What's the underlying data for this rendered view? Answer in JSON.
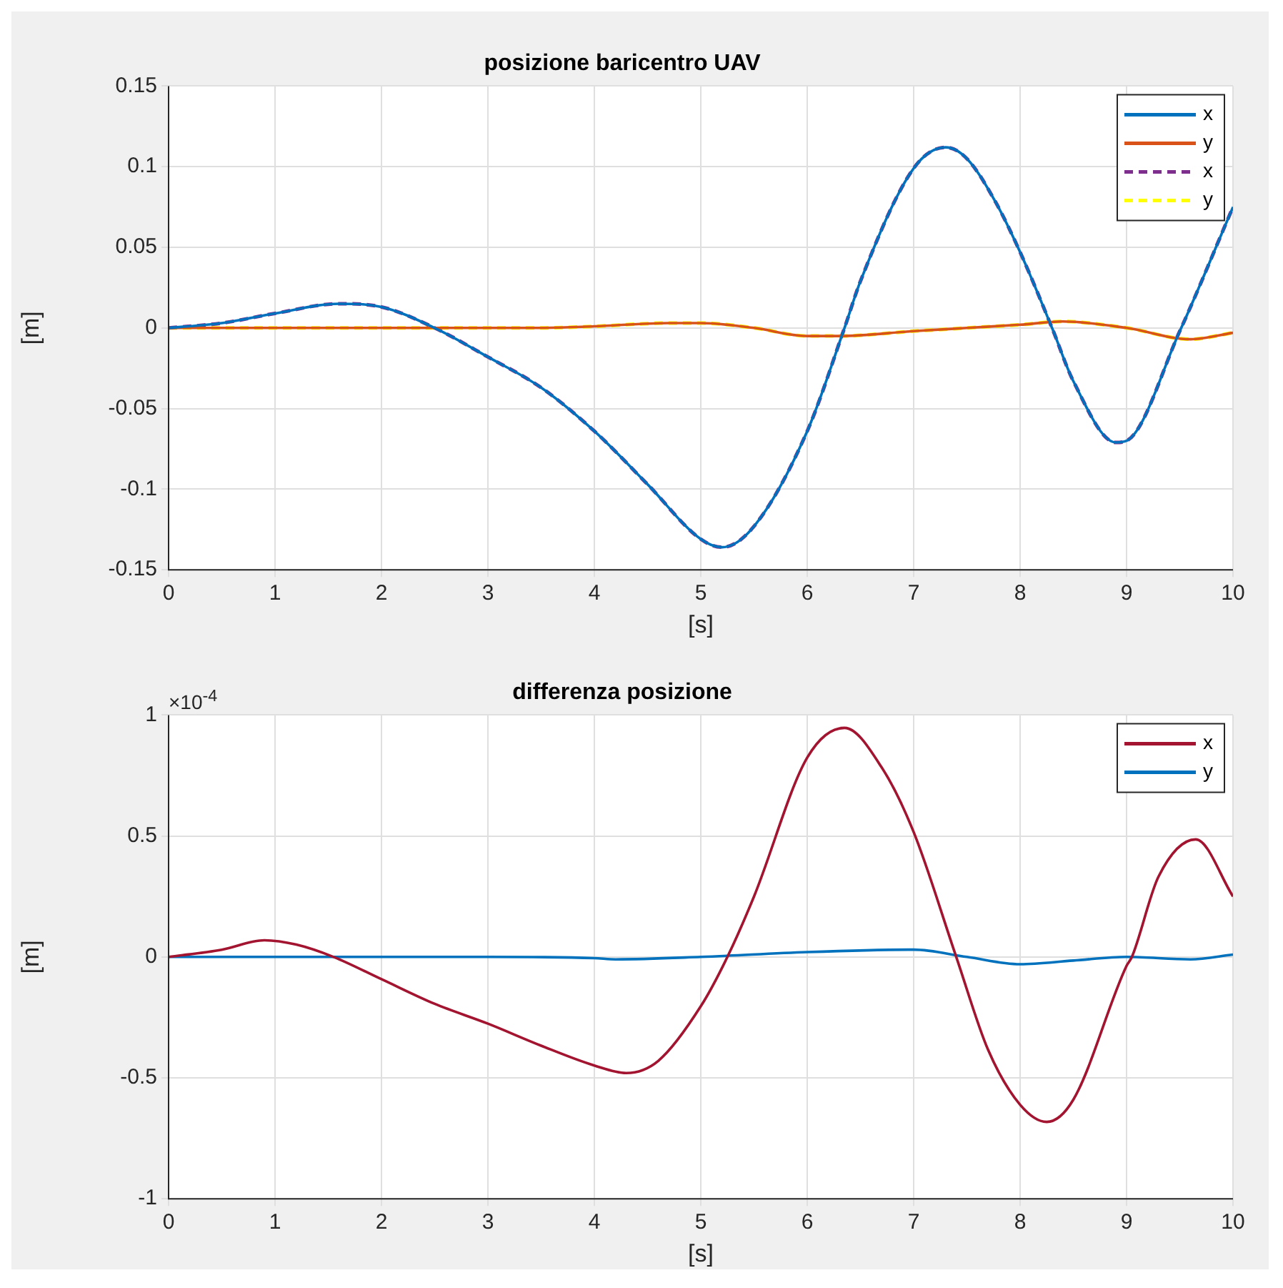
{
  "chart_data": [
    {
      "type": "line",
      "title": "posizione baricentro UAV",
      "xlabel": "[s]",
      "ylabel": "[m]",
      "xlim": [
        0,
        10
      ],
      "xticks": [
        0,
        1,
        2,
        3,
        4,
        5,
        6,
        7,
        8,
        9,
        10
      ],
      "ylim": [
        -0.15,
        0.15
      ],
      "yticks": [
        -0.15,
        -0.1,
        -0.05,
        0,
        0.05,
        0.1,
        0.15
      ],
      "grid": true,
      "legend": "top right",
      "series": [
        {
          "name": "x",
          "color": "#0072bd",
          "line_style": "solid",
          "x": [
            0,
            0.5,
            1,
            1.6,
            2,
            2.5,
            3,
            3.5,
            4,
            4.5,
            5,
            5.2,
            5.5,
            6,
            6.35,
            6.5,
            7,
            7.3,
            7.5,
            7.77,
            8,
            8.3,
            8.5,
            8.9,
            9,
            9.5,
            10
          ],
          "values": [
            0,
            0.003,
            0.009,
            0.015,
            0.013,
            0,
            -0.018,
            -0.037,
            -0.064,
            -0.097,
            -0.131,
            -0.136,
            -0.123,
            -0.064,
            0,
            0.029,
            0.099,
            0.112,
            0.105,
            0.078,
            0.047,
            0,
            -0.033,
            -0.071,
            -0.07,
            -0.002,
            0.075
          ]
        },
        {
          "name": "y",
          "color": "#d95319",
          "line_style": "solid",
          "x": [
            0,
            1,
            2,
            3,
            3.5,
            4,
            4.7,
            5,
            5.5,
            6,
            6.3,
            7,
            7.5,
            8,
            8.4,
            9,
            9.6,
            10
          ],
          "values": [
            0,
            0,
            0,
            0,
            0,
            0.001,
            0.003,
            0.003,
            0,
            -0.005,
            -0.005,
            -0.002,
            0,
            0.002,
            0.004,
            0,
            -0.007,
            -0.003
          ]
        },
        {
          "name": "x",
          "color": "#7e2f8e",
          "line_style": "dashed",
          "x": [
            0,
            0.5,
            1,
            1.6,
            2,
            2.5,
            3,
            3.5,
            4,
            4.5,
            5,
            5.2,
            5.5,
            6,
            6.35,
            6.5,
            7,
            7.3,
            7.5,
            7.77,
            8,
            8.3,
            8.5,
            8.9,
            9,
            9.5,
            10
          ],
          "values": [
            0,
            0.003,
            0.009,
            0.015,
            0.013,
            0,
            -0.018,
            -0.037,
            -0.064,
            -0.097,
            -0.131,
            -0.136,
            -0.123,
            -0.064,
            0,
            0.029,
            0.099,
            0.112,
            0.105,
            0.078,
            0.047,
            0,
            -0.033,
            -0.071,
            -0.07,
            -0.002,
            0.075
          ]
        },
        {
          "name": "y",
          "color": "#ffff00",
          "line_style": "dashed",
          "x": [
            0,
            1,
            2,
            3,
            3.5,
            4,
            4.7,
            5,
            5.5,
            6,
            6.3,
            7,
            7.5,
            8,
            8.4,
            9,
            9.6,
            10
          ],
          "values": [
            0,
            0,
            0,
            0,
            0,
            0.001,
            0.003,
            0.003,
            0,
            -0.005,
            -0.005,
            -0.002,
            0,
            0.002,
            0.004,
            0,
            -0.007,
            -0.003
          ]
        }
      ]
    },
    {
      "type": "line",
      "title": "differenza posizione",
      "xlabel": "[s]",
      "ylabel": "[m]",
      "annotations": [
        "×10$^{-4}$"
      ],
      "xlim": [
        0,
        10
      ],
      "xticks": [
        0,
        1,
        2,
        3,
        4,
        5,
        6,
        7,
        8,
        9,
        10
      ],
      "ylim": [
        -1,
        1
      ],
      "yticks": [
        -1,
        -0.5,
        0,
        0.5,
        1
      ],
      "grid": true,
      "legend": "top right",
      "series": [
        {
          "name": "x",
          "color": "#a2142f",
          "x": [
            0,
            0.5,
            0.9,
            1.2,
            1.55,
            2,
            2.5,
            3,
            3.5,
            4,
            4.3,
            4.6,
            5,
            5.25,
            5.5,
            6,
            6.35,
            6.7,
            7,
            7.4,
            7.7,
            8,
            8.25,
            8.5,
            9,
            9.05,
            9.3,
            9.65,
            10
          ],
          "values": [
            0,
            0.03,
            0.069,
            0.051,
            0,
            -0.092,
            -0.194,
            -0.276,
            -0.367,
            -0.449,
            -0.48,
            -0.43,
            -0.204,
            0,
            0.25,
            0.824,
            0.947,
            0.783,
            0.516,
            0,
            -0.385,
            -0.611,
            -0.682,
            -0.59,
            -0.037,
            0,
            0.332,
            0.486,
            0.25
          ]
        },
        {
          "name": "y",
          "color": "#0072bd",
          "x": [
            0,
            1,
            2,
            3,
            4,
            4.2,
            5,
            6,
            7,
            7.5,
            8,
            8.5,
            9,
            9.6,
            10
          ],
          "values": [
            0,
            0,
            0,
            0,
            -0.005,
            -0.01,
            0,
            0.02,
            0.03,
            0,
            -0.03,
            -0.015,
            0,
            -0.01,
            0.01
          ]
        }
      ]
    }
  ]
}
